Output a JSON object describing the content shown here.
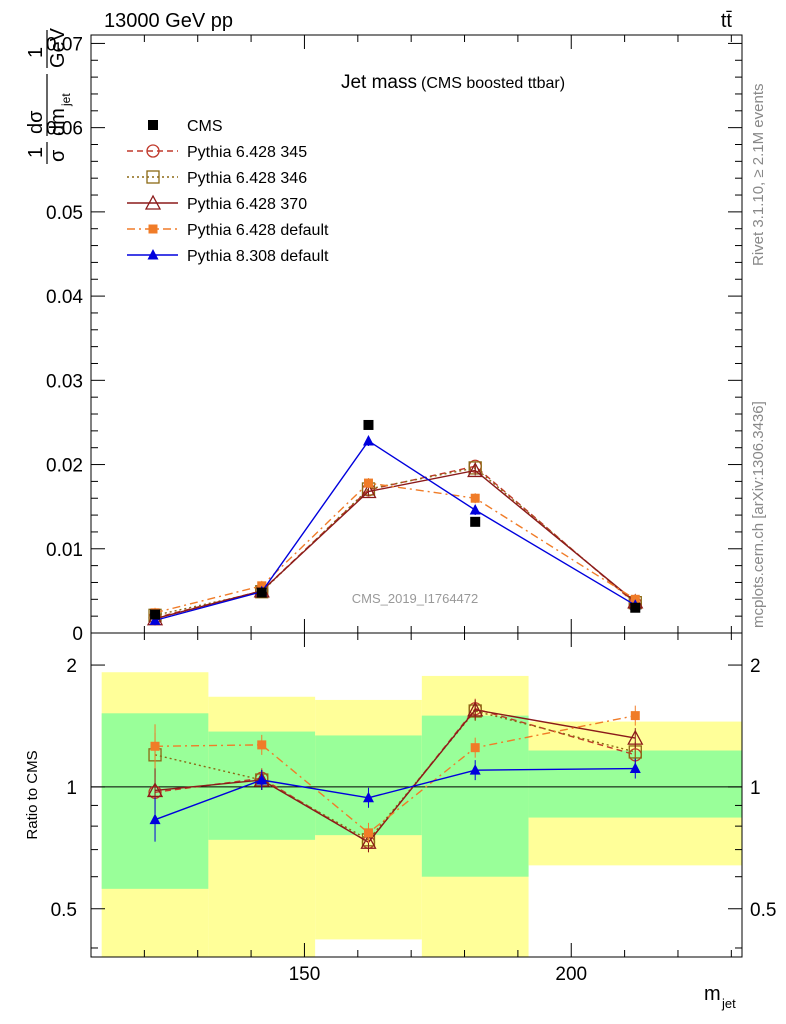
{
  "header": {
    "left": "13000 GeV pp",
    "right": "tt̄"
  },
  "side_labels": {
    "rivet": "Rivet 3.1.10, ≥ 2.1M events",
    "source": "mcplots.cern.ch [arXiv:1306.3436]"
  },
  "chart_data": {
    "type": "line",
    "title": "Jet mass",
    "subtitle": "(CMS boosted ttbar)",
    "watermark": "CMS_2019_I1764472",
    "xlabel": "m_jet",
    "ylabel": "1/σ dσ/dm_jet 1/GeV",
    "xlim": [
      110,
      232
    ],
    "ylim": [
      0,
      0.071
    ],
    "x_ticks": [
      "150",
      "200"
    ],
    "y_ticks": [
      "0",
      "0.01",
      "0.02",
      "0.03",
      "0.04",
      "0.05",
      "0.06",
      "0.07"
    ],
    "legend_position": "top-left",
    "x": [
      122,
      142,
      162,
      182,
      212
    ],
    "data": {
      "name": "CMS",
      "color": "#000000",
      "values": [
        0.0022,
        0.0048,
        0.0247,
        0.0132,
        0.003
      ]
    },
    "series": [
      {
        "name": "Pythia 6.428 345",
        "color": "#c0392b",
        "marker": "open-circle",
        "dash": "dashed",
        "values": [
          0.0018,
          0.005,
          0.017,
          0.0198,
          0.0035
        ]
      },
      {
        "name": "Pythia 6.428 346",
        "color": "#8b6914",
        "marker": "open-square",
        "dash": "dotted",
        "values": [
          0.0021,
          0.0049,
          0.0171,
          0.0196,
          0.0036
        ]
      },
      {
        "name": "Pythia 6.428 370",
        "color": "#8b1a1a",
        "marker": "open-triangle",
        "dash": "solid",
        "values": [
          0.0017,
          0.005,
          0.0168,
          0.0193,
          0.0037
        ]
      },
      {
        "name": "Pythia 6.428 default",
        "color": "#f07c28",
        "marker": "filled-square",
        "dash": "dashdot",
        "values": [
          0.0024,
          0.0056,
          0.0178,
          0.016,
          0.004
        ]
      },
      {
        "name": "Pythia 8.308 default",
        "color": "#0000dd",
        "marker": "filled-triangle",
        "dash": "solid",
        "values": [
          0.0015,
          0.0049,
          0.0228,
          0.0146,
          0.0033
        ]
      }
    ],
    "ratio": {
      "ylabel": "Ratio to CMS",
      "y_ticks": [
        "0.5",
        "1",
        "2"
      ],
      "ylim": [
        0.38,
        2.4
      ],
      "bins": [
        [
          112,
          132
        ],
        [
          132,
          152
        ],
        [
          152,
          172
        ],
        [
          172,
          192
        ],
        [
          192,
          232
        ]
      ],
      "band_inner": [
        [
          0.56,
          1.52
        ],
        [
          0.74,
          1.37
        ],
        [
          0.76,
          1.34
        ],
        [
          0.6,
          1.5
        ],
        [
          0.84,
          1.23
        ]
      ],
      "band_outer": [
        [
          0.35,
          1.92
        ],
        [
          0.35,
          1.67
        ],
        [
          0.42,
          1.64
        ],
        [
          0.35,
          1.88
        ],
        [
          0.64,
          1.45
        ]
      ],
      "series_values": [
        [
          0.97,
          1.05,
          0.73,
          1.56,
          1.2
        ],
        [
          1.2,
          1.04,
          0.74,
          1.54,
          1.22
        ],
        [
          0.98,
          1.04,
          0.73,
          1.55,
          1.32
        ],
        [
          1.26,
          1.27,
          0.77,
          1.25,
          1.5
        ],
        [
          0.83,
          1.04,
          0.94,
          1.1,
          1.11
        ]
      ]
    }
  }
}
